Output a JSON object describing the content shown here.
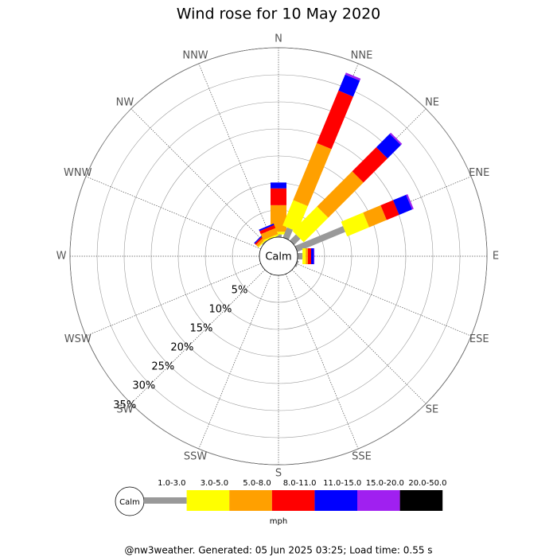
{
  "chart_data": {
    "type": "windrose",
    "title": "Wind rose for 10 May 2020",
    "directions": [
      "N",
      "NNE",
      "NE",
      "ENE",
      "E",
      "ESE",
      "SE",
      "SSE",
      "S",
      "SSW",
      "SW",
      "WSW",
      "W",
      "WNW",
      "NW",
      "NNW"
    ],
    "calm_label": "Calm",
    "unit": "mph",
    "rlim": [
      0,
      35
    ],
    "rticks": [
      {
        "value": 5,
        "label": "5%"
      },
      {
        "value": 10,
        "label": "10%"
      },
      {
        "value": 15,
        "label": "15%"
      },
      {
        "value": 20,
        "label": "20%"
      },
      {
        "value": 25,
        "label": "25%"
      },
      {
        "value": 30,
        "label": "30%"
      },
      {
        "value": 35,
        "label": "35%"
      }
    ],
    "series": [
      {
        "name": "1.0-3.0",
        "color": "#999999",
        "values": [
          0.5,
          2.0,
          1.6,
          9.6,
          0.9,
          0.3,
          0,
          0,
          0,
          0,
          0,
          0,
          0,
          0,
          0.2,
          0
        ]
      },
      {
        "name": "3.0-5.0",
        "color": "#ffff00",
        "values": [
          0.5,
          5.1,
          6.4,
          4.4,
          0.6,
          0,
          0,
          0,
          0,
          0,
          0,
          0,
          0,
          0,
          0.2,
          0.3
        ]
      },
      {
        "name": "5.0-8.0",
        "color": "#ffa000",
        "values": [
          4.9,
          11.4,
          9.2,
          3.5,
          0.4,
          0,
          0,
          0,
          0,
          0,
          0,
          0,
          0,
          0,
          0.5,
          1.2
        ]
      },
      {
        "name": "8.0-11.0",
        "color": "#ff0000",
        "values": [
          3.1,
          10.5,
          6.3,
          2.5,
          0.6,
          0,
          0,
          0,
          0,
          0,
          0,
          0,
          0,
          0,
          0.3,
          0.6
        ]
      },
      {
        "name": "11.0-15.0",
        "color": "#0000ff",
        "values": [
          1.1,
          3.2,
          3.5,
          2.6,
          0.5,
          0,
          0,
          0,
          0,
          0,
          0,
          0,
          0,
          0,
          0.2,
          0.3
        ]
      },
      {
        "name": "15.0-20.0",
        "color": "#a020f0",
        "values": [
          0,
          0.4,
          0.3,
          0.3,
          0.1,
          0,
          0,
          0,
          0,
          0,
          0,
          0,
          0,
          0,
          0,
          0
        ]
      },
      {
        "name": "20.0-50.0",
        "color": "#000000",
        "values": [
          0,
          0,
          0,
          0,
          0,
          0,
          0,
          0,
          0,
          0,
          0,
          0,
          0,
          0,
          0,
          0
        ]
      }
    ]
  },
  "footer": "@nw3weather. Generated: 05 Jun 2025 03:25; Load time: 0.55 s"
}
